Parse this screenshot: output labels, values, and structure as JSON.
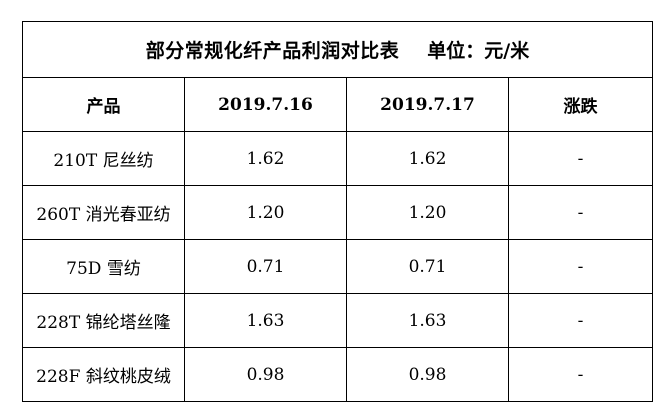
{
  "table": {
    "title": "部分常规化纤产品利润对比表",
    "unit": "单位：元/米",
    "headers": [
      "产品",
      "2019.7.16",
      "2019.7.17",
      "涨跌"
    ],
    "rows": [
      [
        "210T 尼丝纺",
        "1.62",
        "1.62",
        "-"
      ],
      [
        "260T 消光春亚纺",
        "1.20",
        "1.20",
        "-"
      ],
      [
        "75D 雪纺",
        "0.71",
        "0.71",
        "-"
      ],
      [
        "228T 锦纶塔丝隆",
        "1.63",
        "1.63",
        "-"
      ],
      [
        "228F 斜纹桃皮绒",
        "0.98",
        "0.98",
        "-"
      ]
    ]
  }
}
